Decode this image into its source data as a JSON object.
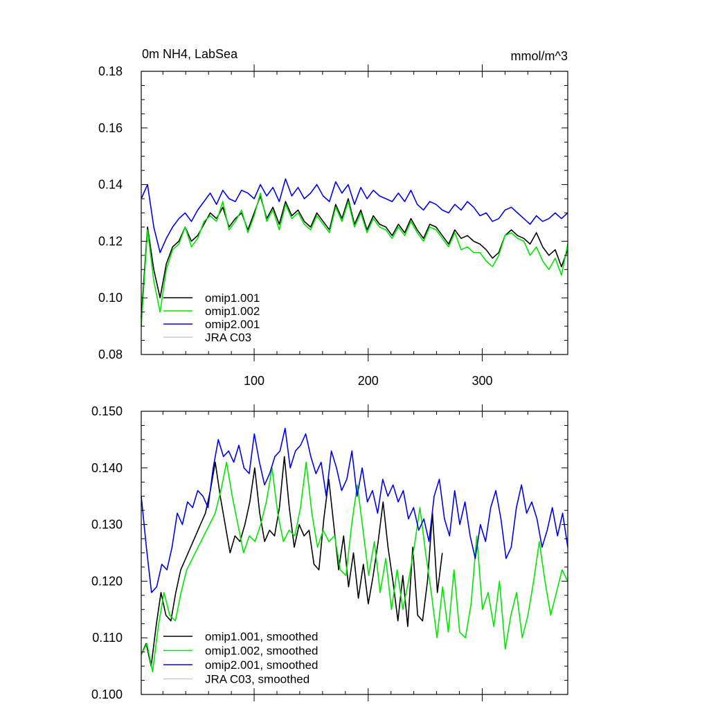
{
  "chart_data": [
    {
      "type": "line",
      "title": "0m NH4, LabSea",
      "units": "mmol/m^3",
      "xlim": [
        1,
        375
      ],
      "ylim": [
        0.08,
        0.18
      ],
      "x_ticks": [
        100,
        200,
        300
      ],
      "x_tick_labels": [
        "100",
        "200",
        "300"
      ],
      "y_ticks": [
        0.08,
        0.1,
        0.12,
        0.14,
        0.16,
        0.18
      ],
      "y_tick_labels": [
        "0.08",
        "0.10",
        "0.12",
        "0.14",
        "0.16",
        "0.18"
      ],
      "legend_position": "bottom-left",
      "series": [
        {
          "name": "JRA C03",
          "color": "#c8c8c8",
          "values": []
        },
        {
          "name": "omip1.001",
          "color": "#000000",
          "values": [
            0.093,
            0.125,
            0.11,
            0.1,
            0.112,
            0.118,
            0.12,
            0.125,
            0.12,
            0.122,
            0.126,
            0.13,
            0.128,
            0.132,
            0.125,
            0.128,
            0.13,
            0.124,
            0.13,
            0.136,
            0.128,
            0.132,
            0.126,
            0.134,
            0.129,
            0.131,
            0.127,
            0.125,
            0.13,
            0.127,
            0.124,
            0.133,
            0.128,
            0.135,
            0.126,
            0.131,
            0.124,
            0.129,
            0.126,
            0.125,
            0.122,
            0.126,
            0.123,
            0.128,
            0.124,
            0.121,
            0.126,
            0.125,
            0.122,
            0.119,
            0.124,
            0.121,
            0.122,
            0.12,
            0.119,
            0.117,
            0.114,
            0.116,
            0.122,
            0.124,
            0.122,
            0.121,
            0.119,
            0.123,
            0.118,
            0.115,
            0.117,
            0.111,
            0.117
          ]
        },
        {
          "name": "omip1.002",
          "color": "#00e600",
          "values": [
            0.09,
            0.124,
            0.106,
            0.095,
            0.11,
            0.117,
            0.119,
            0.125,
            0.118,
            0.121,
            0.127,
            0.129,
            0.127,
            0.134,
            0.124,
            0.127,
            0.131,
            0.123,
            0.129,
            0.137,
            0.127,
            0.131,
            0.124,
            0.133,
            0.128,
            0.13,
            0.126,
            0.124,
            0.129,
            0.126,
            0.123,
            0.132,
            0.127,
            0.134,
            0.125,
            0.13,
            0.123,
            0.128,
            0.125,
            0.124,
            0.121,
            0.125,
            0.122,
            0.127,
            0.123,
            0.12,
            0.125,
            0.124,
            0.121,
            0.118,
            0.123,
            0.117,
            0.118,
            0.116,
            0.116,
            0.113,
            0.111,
            0.115,
            0.122,
            0.123,
            0.121,
            0.12,
            0.115,
            0.118,
            0.113,
            0.11,
            0.114,
            0.108,
            0.119
          ]
        },
        {
          "name": "omip2.001",
          "color": "#0000e6",
          "values": [
            0.135,
            0.14,
            0.125,
            0.116,
            0.121,
            0.125,
            0.128,
            0.13,
            0.127,
            0.131,
            0.134,
            0.137,
            0.133,
            0.138,
            0.135,
            0.134,
            0.138,
            0.137,
            0.135,
            0.14,
            0.136,
            0.139,
            0.134,
            0.142,
            0.136,
            0.139,
            0.135,
            0.137,
            0.14,
            0.136,
            0.134,
            0.141,
            0.137,
            0.14,
            0.133,
            0.139,
            0.135,
            0.138,
            0.136,
            0.135,
            0.134,
            0.137,
            0.134,
            0.138,
            0.133,
            0.131,
            0.134,
            0.133,
            0.131,
            0.13,
            0.133,
            0.131,
            0.134,
            0.132,
            0.129,
            0.13,
            0.127,
            0.128,
            0.131,
            0.132,
            0.13,
            0.128,
            0.126,
            0.129,
            0.127,
            0.128,
            0.13,
            0.128,
            0.13
          ]
        }
      ]
    },
    {
      "type": "line",
      "xlim": [
        1,
        375
      ],
      "ylim": [
        0.1,
        0.15
      ],
      "y_ticks": [
        0.1,
        0.11,
        0.12,
        0.13,
        0.14,
        0.15
      ],
      "y_tick_labels": [
        "0.100",
        "0.110",
        "0.120",
        "0.130",
        "0.140",
        "0.150"
      ],
      "legend_position": "bottom-left",
      "series": [
        {
          "name": "JRA C03, smoothed",
          "color": "#c8c8c8",
          "values": []
        },
        {
          "name": "omip1.001, smoothed",
          "color": "#000000",
          "values": [
            0.107,
            0.109,
            0.105,
            0.112,
            0.118,
            0.114,
            0.113,
            0.118,
            0.122,
            0.124,
            0.126,
            0.128,
            0.13,
            0.132,
            0.136,
            0.141,
            0.135,
            0.13,
            0.125,
            0.128,
            0.127,
            0.13,
            0.134,
            0.14,
            0.132,
            0.127,
            0.129,
            0.128,
            0.133,
            0.142,
            0.133,
            0.126,
            0.13,
            0.128,
            0.129,
            0.123,
            0.122,
            0.131,
            0.138,
            0.13,
            0.122,
            0.128,
            0.119,
            0.125,
            0.117,
            0.123,
            0.116,
            0.121,
            0.127,
            0.134,
            0.126,
            0.12,
            0.113,
            0.121,
            0.112,
            0.126,
            0.114,
            0.113,
            0.12,
            0.132,
            0.118,
            0.125
          ]
        },
        {
          "name": "omip1.002, smoothed",
          "color": "#00e600",
          "values": [
            0.107,
            0.109,
            0.104,
            0.112,
            0.118,
            0.114,
            0.113,
            0.118,
            0.122,
            0.124,
            0.126,
            0.128,
            0.13,
            0.132,
            0.136,
            0.141,
            0.135,
            0.13,
            0.125,
            0.128,
            0.127,
            0.13,
            0.134,
            0.14,
            0.132,
            0.127,
            0.129,
            0.128,
            0.133,
            0.141,
            0.132,
            0.126,
            0.129,
            0.127,
            0.128,
            0.122,
            0.121,
            0.13,
            0.137,
            0.129,
            0.121,
            0.127,
            0.118,
            0.124,
            0.115,
            0.122,
            0.115,
            0.12,
            0.126,
            0.133,
            0.125,
            0.118,
            0.11,
            0.119,
            0.111,
            0.122,
            0.111,
            0.11,
            0.116,
            0.128,
            0.115,
            0.118,
            0.112,
            0.12,
            0.108,
            0.114,
            0.118,
            0.11,
            0.114,
            0.12,
            0.127,
            0.12,
            0.114,
            0.118,
            0.122,
            0.12
          ]
        },
        {
          "name": "omip2.001, smoothed",
          "color": "#0000e6",
          "values": [
            0.135,
            0.126,
            0.118,
            0.119,
            0.123,
            0.122,
            0.126,
            0.132,
            0.13,
            0.134,
            0.133,
            0.136,
            0.135,
            0.133,
            0.14,
            0.145,
            0.142,
            0.143,
            0.141,
            0.144,
            0.14,
            0.139,
            0.146,
            0.141,
            0.137,
            0.139,
            0.142,
            0.143,
            0.147,
            0.14,
            0.143,
            0.144,
            0.146,
            0.142,
            0.139,
            0.141,
            0.135,
            0.143,
            0.14,
            0.136,
            0.138,
            0.143,
            0.135,
            0.14,
            0.134,
            0.136,
            0.132,
            0.138,
            0.135,
            0.137,
            0.134,
            0.136,
            0.131,
            0.133,
            0.129,
            0.131,
            0.127,
            0.135,
            0.138,
            0.131,
            0.128,
            0.136,
            0.13,
            0.134,
            0.128,
            0.124,
            0.13,
            0.127,
            0.133,
            0.136,
            0.131,
            0.124,
            0.126,
            0.133,
            0.137,
            0.132,
            0.134,
            0.131,
            0.126,
            0.129,
            0.133,
            0.128,
            0.132,
            0.126
          ]
        }
      ]
    }
  ]
}
